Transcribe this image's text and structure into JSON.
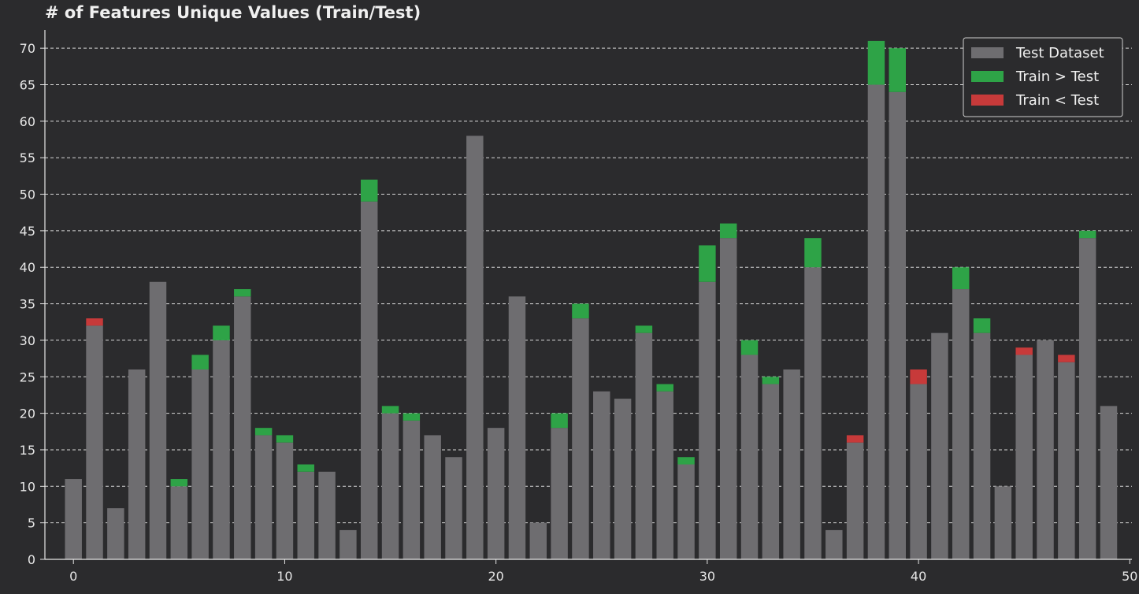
{
  "chart_data": {
    "type": "bar",
    "title": "# of Features Unique Values (Train/Test)",
    "xlabel": "",
    "ylabel": "",
    "x": [
      0,
      1,
      2,
      3,
      4,
      5,
      6,
      7,
      8,
      9,
      10,
      11,
      12,
      13,
      14,
      15,
      16,
      17,
      18,
      19,
      20,
      21,
      22,
      23,
      24,
      25,
      26,
      27,
      28,
      29,
      30,
      31,
      32,
      33,
      34,
      35,
      36,
      37,
      38,
      39,
      40,
      41,
      42,
      43,
      44,
      45,
      46,
      47,
      48,
      49
    ],
    "series": [
      {
        "name": "Test Dataset",
        "color": "#6e6d70",
        "values": [
          11,
          32,
          7,
          26,
          38,
          10,
          26,
          30,
          36,
          17,
          16,
          12,
          12,
          4,
          49,
          20,
          19,
          17,
          14,
          58,
          18,
          36,
          5,
          18,
          33,
          23,
          22,
          31,
          23,
          13,
          38,
          44,
          28,
          24,
          26,
          40,
          4,
          16,
          65,
          64,
          24,
          31,
          37,
          31,
          10,
          28,
          30,
          27,
          44,
          21
        ]
      },
      {
        "name": "Train > Test",
        "color": "#2ea347",
        "values": [
          0,
          0,
          0,
          0,
          0,
          1,
          2,
          2,
          1,
          1,
          1,
          1,
          0,
          0,
          3,
          1,
          1,
          0,
          0,
          0,
          0,
          0,
          0,
          2,
          2,
          0,
          0,
          1,
          1,
          1,
          5,
          2,
          2,
          1,
          0,
          4,
          0,
          0,
          6,
          6,
          0,
          0,
          3,
          2,
          0,
          0,
          0,
          0,
          1,
          0
        ]
      },
      {
        "name": "Train < Test",
        "color": "#c73a3a",
        "values": [
          0,
          1,
          0,
          0,
          0,
          0,
          0,
          0,
          0,
          0,
          0,
          0,
          0,
          0,
          0,
          0,
          0,
          0,
          0,
          0,
          0,
          0,
          0,
          0,
          0,
          0,
          0,
          0,
          0,
          0,
          0,
          0,
          0,
          0,
          0,
          0,
          0,
          1,
          0,
          0,
          2,
          0,
          0,
          0,
          0,
          1,
          0,
          1,
          0,
          0
        ]
      }
    ],
    "xlim": [
      -1.35,
      50.1
    ],
    "ylim": [
      0,
      72.5
    ],
    "xticks": [
      "0",
      "10",
      "20",
      "30",
      "40",
      "50"
    ],
    "yticks": [
      "0",
      "5",
      "10",
      "15",
      "20",
      "25",
      "30",
      "35",
      "40",
      "45",
      "50",
      "55",
      "60",
      "65",
      "70"
    ],
    "grid": "y-dashed",
    "legend_position": "top-right"
  }
}
